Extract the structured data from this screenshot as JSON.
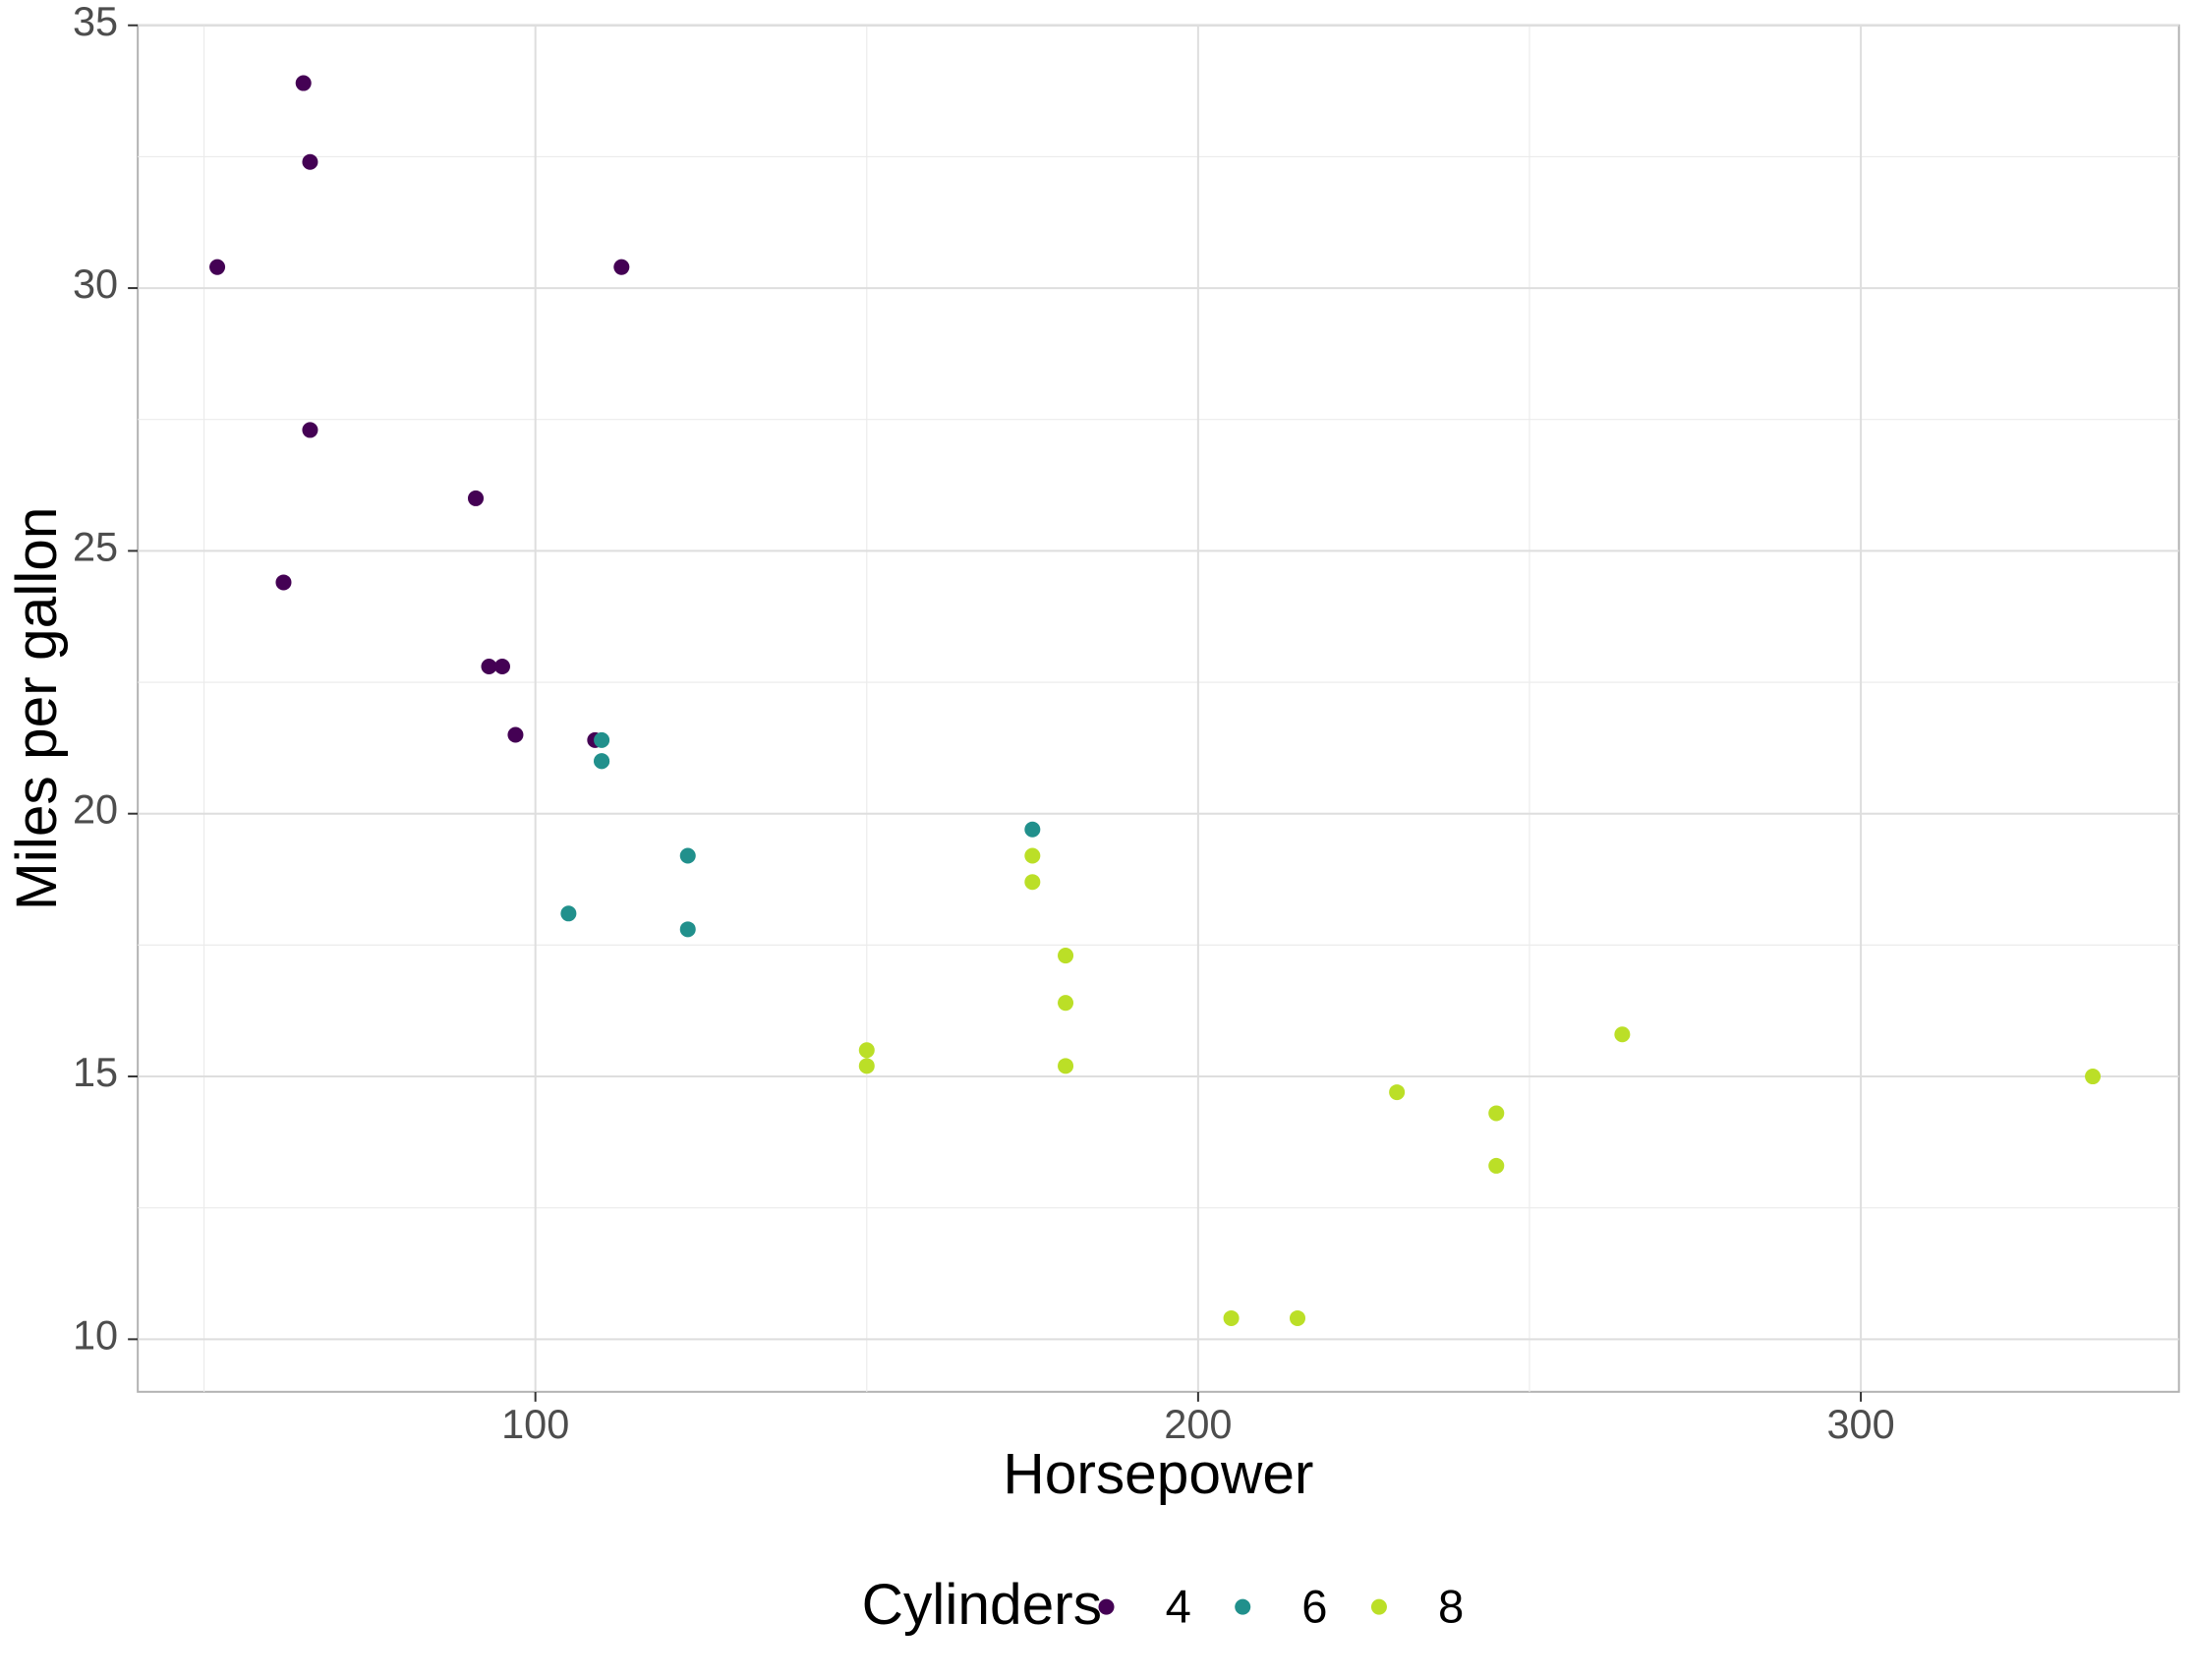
{
  "chart_data": {
    "type": "scatter",
    "title": "",
    "xlabel": "Horsepower",
    "ylabel": "Miles per gallon",
    "xlim": [
      40,
      348
    ],
    "ylim": [
      9,
      35
    ],
    "x_ticks": [
      100,
      200,
      300
    ],
    "y_ticks": [
      10,
      15,
      20,
      25,
      30,
      35
    ],
    "grid": true,
    "legend": {
      "title": "Cylinders",
      "position": "bottom"
    },
    "series": [
      {
        "name": "4",
        "color": "#440154",
        "points": [
          {
            "x": 93,
            "y": 22.8
          },
          {
            "x": 62,
            "y": 24.4
          },
          {
            "x": 95,
            "y": 22.8
          },
          {
            "x": 66,
            "y": 32.4
          },
          {
            "x": 52,
            "y": 30.4
          },
          {
            "x": 65,
            "y": 33.9
          },
          {
            "x": 97,
            "y": 21.5
          },
          {
            "x": 66,
            "y": 27.3
          },
          {
            "x": 91,
            "y": 26.0
          },
          {
            "x": 113,
            "y": 30.4
          },
          {
            "x": 109,
            "y": 21.4
          }
        ]
      },
      {
        "name": "6",
        "color": "#21908C",
        "points": [
          {
            "x": 110,
            "y": 21.0
          },
          {
            "x": 110,
            "y": 21.0
          },
          {
            "x": 110,
            "y": 21.4
          },
          {
            "x": 105,
            "y": 18.1
          },
          {
            "x": 123,
            "y": 19.2
          },
          {
            "x": 123,
            "y": 17.8
          },
          {
            "x": 175,
            "y": 19.7
          }
        ]
      },
      {
        "name": "8",
        "color": "#BBDF27",
        "points": [
          {
            "x": 175,
            "y": 18.7
          },
          {
            "x": 245,
            "y": 14.3
          },
          {
            "x": 180,
            "y": 16.4
          },
          {
            "x": 180,
            "y": 17.3
          },
          {
            "x": 180,
            "y": 15.2
          },
          {
            "x": 205,
            "y": 10.4
          },
          {
            "x": 215,
            "y": 10.4
          },
          {
            "x": 230,
            "y": 14.7
          },
          {
            "x": 150,
            "y": 15.5
          },
          {
            "x": 150,
            "y": 15.2
          },
          {
            "x": 245,
            "y": 13.3
          },
          {
            "x": 175,
            "y": 19.2
          },
          {
            "x": 264,
            "y": 15.8
          },
          {
            "x": 335,
            "y": 15.0
          }
        ]
      }
    ]
  }
}
